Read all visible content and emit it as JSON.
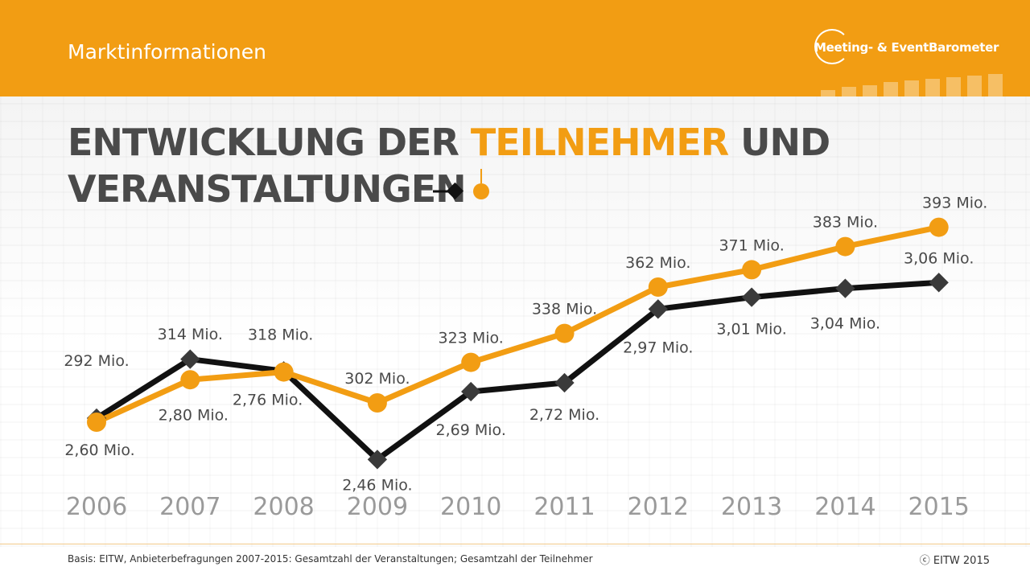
{
  "header": {
    "title": "Marktinformationen",
    "logo_text": "Meeting- & EventBarometer"
  },
  "headline": {
    "part1": "ENTWICKLUNG DER ",
    "highlight": "TEILNEHMER",
    "part2": " UND",
    "line2": "VERANSTALTUNGEN"
  },
  "colors": {
    "accent": "#f29d13",
    "dark": "#111111",
    "marker_dark": "#3a3a3a",
    "text": "#4a4a4a",
    "axis_label": "#9a9a9a"
  },
  "chart_data": {
    "type": "line",
    "title": "",
    "x": [
      "2006",
      "2007",
      "2008",
      "2009",
      "2010",
      "2011",
      "2012",
      "2013",
      "2014",
      "2015"
    ],
    "series": [
      {
        "color": "#f29d13",
        "marker": "circle",
        "values": [
          292,
          314,
          318,
          302,
          323,
          338,
          362,
          371,
          383,
          393
        ],
        "labels": [
          "292 Mio.",
          "314 Mio.",
          "318 Mio.",
          "302 Mio.",
          "323 Mio.",
          "338 Mio.",
          "362 Mio.",
          "371 Mio.",
          "383 Mio.",
          "393 Mio."
        ]
      },
      {
        "color": "#111111",
        "marker": "diamond",
        "values": [
          2.6,
          2.8,
          2.76,
          2.46,
          2.69,
          2.72,
          2.97,
          3.01,
          3.04,
          3.06
        ],
        "labels": [
          "2,60 Mio.",
          "2,80 Mio.",
          "2,76 Mio.",
          "2,46 Mio.",
          "2,69 Mio.",
          "2,72 Mio.",
          "2,97 Mio.",
          "3,01 Mio.",
          "3,04 Mio.",
          "3,06 Mio."
        ]
      }
    ],
    "legend": "headline-inline",
    "grid": false
  },
  "footer": {
    "source": "Basis: EITW, Anbieterbefragungen 2007-2015: Gesamtzahl der Veranstaltungen; Gesamtzahl der Teilnehmer",
    "copyright": "ⓒ EITW 2015"
  }
}
